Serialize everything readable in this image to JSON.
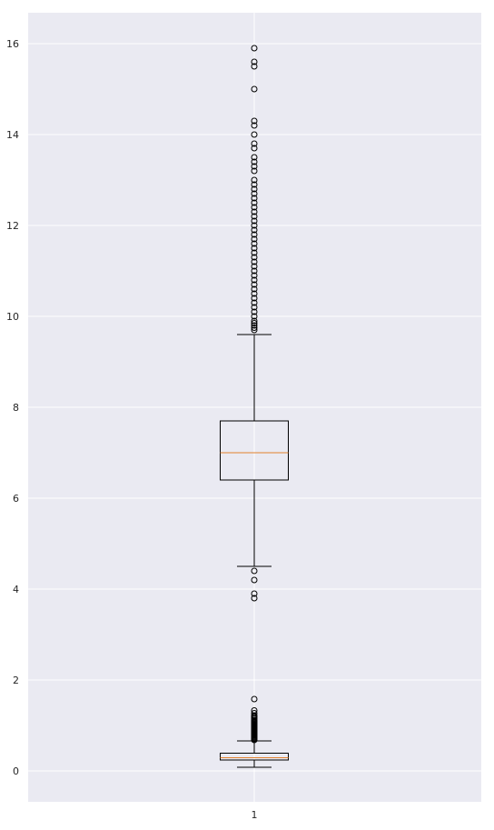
{
  "chart_data": {
    "type": "boxplot",
    "title": "",
    "xlabel": "",
    "ylabel": "",
    "categories": [
      "1"
    ],
    "ylim": [
      -0.68,
      16.68
    ],
    "yticks": [
      0,
      2,
      4,
      6,
      8,
      10,
      12,
      14,
      16
    ],
    "grid": true,
    "colors": {
      "background": "#eaeaf2",
      "grid": "#ffffff",
      "box": "#000000",
      "median": "#e1812c",
      "flier": "#000000"
    },
    "boxes": [
      {
        "q1": 6.4,
        "median": 7.0,
        "q3": 7.7,
        "whisker_low": 4.5,
        "whisker_high": 9.6,
        "fliers": [
          3.8,
          3.9,
          4.2,
          4.4,
          9.7,
          9.75,
          9.8,
          9.85,
          9.9,
          10.0,
          10.1,
          10.2,
          10.3,
          10.4,
          10.5,
          10.6,
          10.7,
          10.8,
          10.9,
          11.0,
          11.1,
          11.2,
          11.3,
          11.4,
          11.5,
          11.6,
          11.7,
          11.8,
          11.9,
          12.0,
          12.1,
          12.2,
          12.3,
          12.4,
          12.5,
          12.6,
          12.7,
          12.8,
          12.9,
          13.0,
          13.2,
          13.3,
          13.4,
          13.5,
          13.7,
          13.8,
          14.0,
          14.2,
          14.3,
          15.0,
          15.5,
          15.6,
          15.9
        ]
      },
      {
        "q1": 0.24,
        "median": 0.29,
        "q3": 0.39,
        "whisker_low": 0.08,
        "whisker_high": 0.66,
        "fliers": [
          0.68,
          0.7,
          0.72,
          0.74,
          0.76,
          0.78,
          0.8,
          0.82,
          0.84,
          0.86,
          0.88,
          0.9,
          0.92,
          0.94,
          0.96,
          0.98,
          1.0,
          1.02,
          1.04,
          1.06,
          1.08,
          1.1,
          1.12,
          1.15,
          1.18,
          1.2,
          1.22,
          1.27,
          1.33,
          1.58
        ]
      }
    ]
  }
}
